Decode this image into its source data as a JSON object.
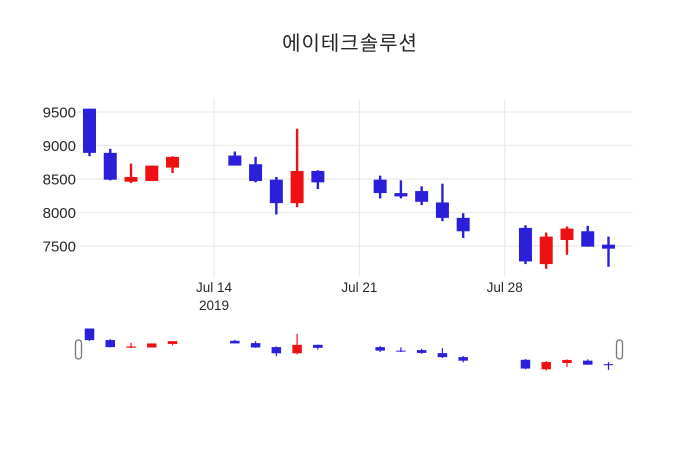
{
  "title": "에이테크솔루션",
  "colors": {
    "up": "#ed1111",
    "down": "#2b1fd9",
    "grid": "#ebebeb",
    "text": "#262626",
    "handle_fill": "#ffffff",
    "handle_border": "#777777",
    "background": "#ffffff"
  },
  "chart_data": {
    "type": "candlestick",
    "title": "에이테크솔루션",
    "legend": "none",
    "grid": "on",
    "increasing_color": "#ed1111",
    "decreasing_color": "#2b1fd9",
    "yaxis": {
      "ticks": [
        9500,
        9000,
        8500,
        8000,
        7500
      ],
      "range": [
        7100,
        9650
      ]
    },
    "xaxis": {
      "range": [
        "2019-07-07",
        "2019-08-03"
      ],
      "ticks": [
        {
          "date": "2019-07-14",
          "label": "Jul 14",
          "sublabel": "2019"
        },
        {
          "date": "2019-07-21",
          "label": "Jul 21",
          "sublabel": ""
        },
        {
          "date": "2019-07-28",
          "label": "Jul 28",
          "sublabel": ""
        }
      ]
    },
    "rangeslider": {
      "present": true
    },
    "candles": [
      {
        "date": "2019-07-08",
        "open": 9550,
        "high": 9550,
        "low": 8840,
        "close": 8890
      },
      {
        "date": "2019-07-09",
        "open": 8890,
        "high": 8950,
        "low": 8480,
        "close": 8490
      },
      {
        "date": "2019-07-10",
        "open": 8460,
        "high": 8730,
        "low": 8440,
        "close": 8530
      },
      {
        "date": "2019-07-11",
        "open": 8470,
        "high": 8700,
        "low": 8470,
        "close": 8700
      },
      {
        "date": "2019-07-12",
        "open": 8670,
        "high": 8840,
        "low": 8590,
        "close": 8830
      },
      {
        "date": "2019-07-15",
        "open": 8850,
        "high": 8910,
        "low": 8700,
        "close": 8700
      },
      {
        "date": "2019-07-16",
        "open": 8720,
        "high": 8830,
        "low": 8450,
        "close": 8470
      },
      {
        "date": "2019-07-17",
        "open": 8490,
        "high": 8530,
        "low": 7970,
        "close": 8140
      },
      {
        "date": "2019-07-18",
        "open": 8140,
        "high": 9250,
        "low": 8080,
        "close": 8620
      },
      {
        "date": "2019-07-19",
        "open": 8620,
        "high": 8630,
        "low": 8350,
        "close": 8450
      },
      {
        "date": "2019-07-22",
        "open": 8490,
        "high": 8550,
        "low": 8210,
        "close": 8290
      },
      {
        "date": "2019-07-23",
        "open": 8290,
        "high": 8480,
        "low": 8210,
        "close": 8240
      },
      {
        "date": "2019-07-24",
        "open": 8320,
        "high": 8390,
        "low": 8110,
        "close": 8160
      },
      {
        "date": "2019-07-25",
        "open": 8150,
        "high": 8430,
        "low": 7870,
        "close": 7920
      },
      {
        "date": "2019-07-26",
        "open": 7920,
        "high": 7990,
        "low": 7620,
        "close": 7720
      },
      {
        "date": "2019-07-29",
        "open": 7770,
        "high": 7810,
        "low": 7230,
        "close": 7270
      },
      {
        "date": "2019-07-30",
        "open": 7230,
        "high": 7700,
        "low": 7160,
        "close": 7640
      },
      {
        "date": "2019-07-31",
        "open": 7590,
        "high": 7790,
        "low": 7370,
        "close": 7760
      },
      {
        "date": "2019-08-01",
        "open": 7720,
        "high": 7800,
        "low": 7490,
        "close": 7490
      },
      {
        "date": "2019-08-02",
        "open": 7520,
        "high": 7640,
        "low": 7190,
        "close": 7460
      }
    ]
  }
}
